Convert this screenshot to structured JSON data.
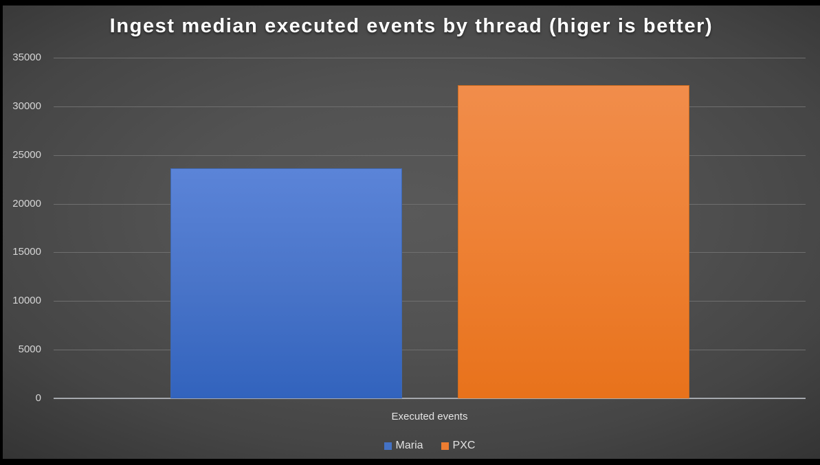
{
  "slide": {
    "title": "Ingest median executed events by thread (higer is better)"
  },
  "chart_data": {
    "type": "bar",
    "title": "Ingest median executed events by thread (higer is better)",
    "categories": [
      "Executed events"
    ],
    "series": [
      {
        "name": "Maria",
        "color": "#4472c4",
        "values": [
          23650
        ]
      },
      {
        "name": "PXC",
        "color": "#ed7d31",
        "values": [
          32150
        ]
      }
    ],
    "xlabel": "Executed events",
    "ylabel": "",
    "ylim": [
      0,
      35000
    ],
    "yticks": [
      0,
      5000,
      10000,
      15000,
      20000,
      25000,
      30000,
      35000
    ],
    "grid": true,
    "legend_position": "bottom",
    "colors": {
      "background_center": "#595959",
      "background_edge": "#242424",
      "gridline": "#6f6f6f",
      "axis_line": "#a6a9ae",
      "tick_text": "#d6d6d6",
      "title_text": "#ffffff",
      "maria_bar_top": "#5b84d8",
      "maria_bar_bottom": "#3263bd",
      "pxc_bar_top": "#f18d4b",
      "pxc_bar_bottom": "#e8721b"
    }
  }
}
